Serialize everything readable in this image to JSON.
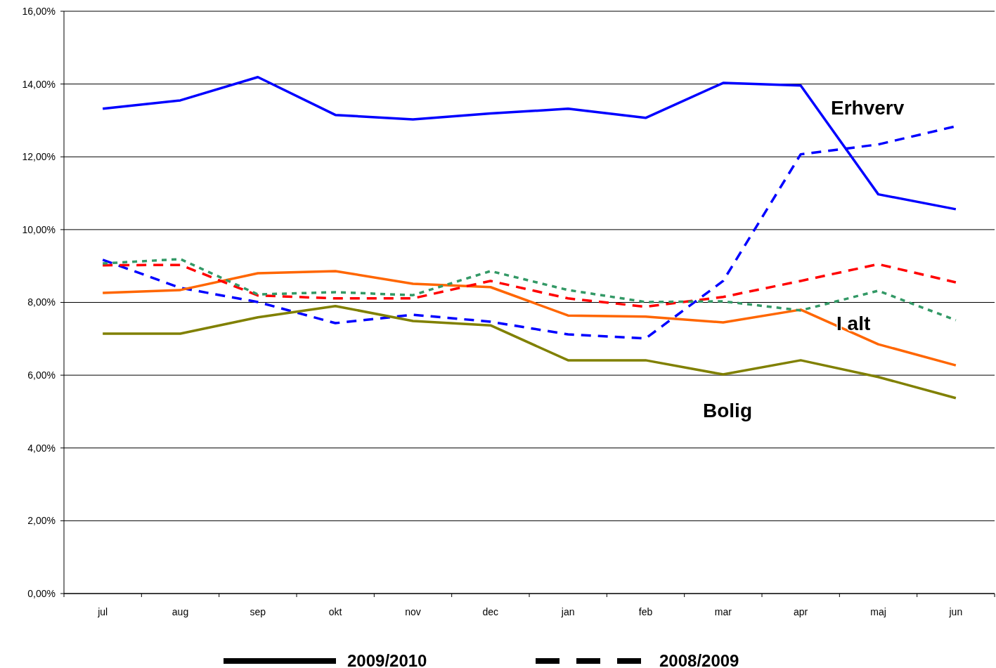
{
  "chart_data": {
    "type": "line",
    "categories": [
      "jul",
      "aug",
      "sep",
      "okt",
      "nov",
      "dec",
      "jan",
      "feb",
      "mar",
      "apr",
      "maj",
      "jun"
    ],
    "series": [
      {
        "color": "#0000ff",
        "line_style": "solid",
        "values": [
          13.32,
          13.55,
          14.19,
          13.15,
          13.03,
          13.19,
          13.32,
          13.07,
          14.03,
          13.96,
          10.97,
          10.56
        ]
      },
      {
        "color": "#0000ff",
        "line_style": "dashed",
        "values": [
          9.17,
          8.4,
          8.01,
          7.43,
          7.66,
          7.47,
          7.12,
          7.01,
          8.59,
          12.07,
          12.34,
          12.84
        ]
      },
      {
        "color": "#ff6600",
        "line_style": "solid",
        "values": [
          8.26,
          8.34,
          8.8,
          8.86,
          8.51,
          8.42,
          7.64,
          7.61,
          7.45,
          7.8,
          6.85,
          6.27
        ]
      },
      {
        "color": "#ff0000",
        "line_style": "dashed",
        "values": [
          9.02,
          9.03,
          8.19,
          8.11,
          8.11,
          8.59,
          8.11,
          7.88,
          8.15,
          8.59,
          9.05,
          8.55
        ]
      },
      {
        "color": "#808000",
        "line_style": "solid",
        "values": [
          7.14,
          7.14,
          7.59,
          7.9,
          7.49,
          7.37,
          6.41,
          6.41,
          6.02,
          6.41,
          5.95,
          5.37
        ]
      },
      {
        "color": "#339966",
        "line_style": "dotted",
        "values": [
          9.07,
          9.19,
          8.22,
          8.28,
          8.2,
          8.86,
          8.34,
          8.01,
          8.03,
          7.78,
          8.32,
          7.51
        ]
      }
    ],
    "ylim": [
      0,
      16
    ],
    "yticks": [
      {
        "value": 0,
        "label": "0,00%"
      },
      {
        "value": 2,
        "label": "2,00%"
      },
      {
        "value": 4,
        "label": "4,00%"
      },
      {
        "value": 6,
        "label": "6,00%"
      },
      {
        "value": 8,
        "label": "8,00%"
      },
      {
        "value": 10,
        "label": "10,00%"
      },
      {
        "value": 12,
        "label": "12,00%"
      },
      {
        "value": 14,
        "label": "14,00%"
      },
      {
        "value": 16,
        "label": "16,00%"
      }
    ],
    "grid": "y",
    "marker": "none",
    "annotations": [
      "Erhverv",
      "I alt",
      "Bolig",
      "2009/2010",
      "2008/2009"
    ]
  }
}
